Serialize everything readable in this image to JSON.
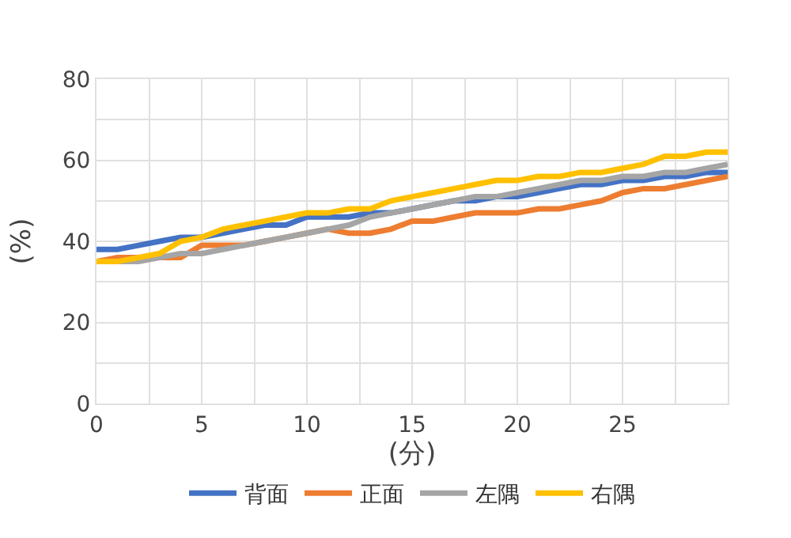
{
  "chart_data": {
    "type": "line",
    "xlabel": "(分)",
    "ylabel": "(%)",
    "x": [
      0,
      1,
      2,
      3,
      4,
      5,
      6,
      7,
      8,
      9,
      10,
      11,
      12,
      13,
      14,
      15,
      16,
      17,
      18,
      19,
      20,
      21,
      22,
      23,
      24,
      25,
      26,
      27,
      28,
      29,
      30
    ],
    "series": [
      {
        "name": "背面",
        "color": "#4472c4",
        "values": [
          38,
          38,
          39,
          40,
          41,
          41,
          42,
          43,
          44,
          44,
          46,
          46,
          46,
          47,
          47,
          48,
          49,
          50,
          50,
          51,
          51,
          52,
          53,
          54,
          54,
          55,
          55,
          56,
          56,
          57,
          57
        ]
      },
      {
        "name": "正面",
        "color": "#ed7d31",
        "values": [
          35,
          36,
          36,
          36,
          36,
          39,
          39,
          39,
          40,
          41,
          42,
          43,
          42,
          42,
          43,
          45,
          45,
          46,
          47,
          47,
          47,
          48,
          48,
          49,
          50,
          52,
          53,
          53,
          54,
          55,
          56
        ]
      },
      {
        "name": "左隅",
        "color": "#a5a5a5",
        "values": [
          null,
          35,
          35,
          36,
          37,
          37,
          38,
          39,
          40,
          41,
          42,
          43,
          44,
          46,
          47,
          48,
          49,
          50,
          51,
          51,
          52,
          53,
          54,
          55,
          55,
          56,
          56,
          57,
          57,
          58,
          59
        ]
      },
      {
        "name": "右隅",
        "color": "#ffc000",
        "values": [
          35,
          35,
          36,
          37,
          40,
          41,
          43,
          44,
          45,
          46,
          47,
          47,
          48,
          48,
          50,
          51,
          52,
          53,
          54,
          55,
          55,
          56,
          56,
          57,
          57,
          58,
          59,
          61,
          61,
          62,
          62
        ]
      }
    ],
    "xlim": [
      0,
      30
    ],
    "xticks": [
      0,
      {
        "value": 2.5,
        "label": null
      },
      5,
      {
        "value": 7.5,
        "label": null
      },
      10,
      {
        "value": 12.5,
        "label": null
      },
      15,
      {
        "value": 17.5,
        "label": null
      },
      20,
      {
        "value": 22.5,
        "label": null
      },
      25,
      {
        "value": 27.5,
        "label": null
      },
      {
        "value": 30,
        "label": null
      }
    ],
    "ylim": [
      0,
      80
    ],
    "yticks": [
      0,
      {
        "value": 10,
        "label": null
      },
      20,
      {
        "value": 30,
        "label": null
      },
      40,
      {
        "value": 50,
        "label": null
      },
      60,
      {
        "value": 70,
        "label": null
      },
      80
    ],
    "grid": true,
    "legend": "bottom",
    "marker": "none",
    "line_style": "solid"
  }
}
